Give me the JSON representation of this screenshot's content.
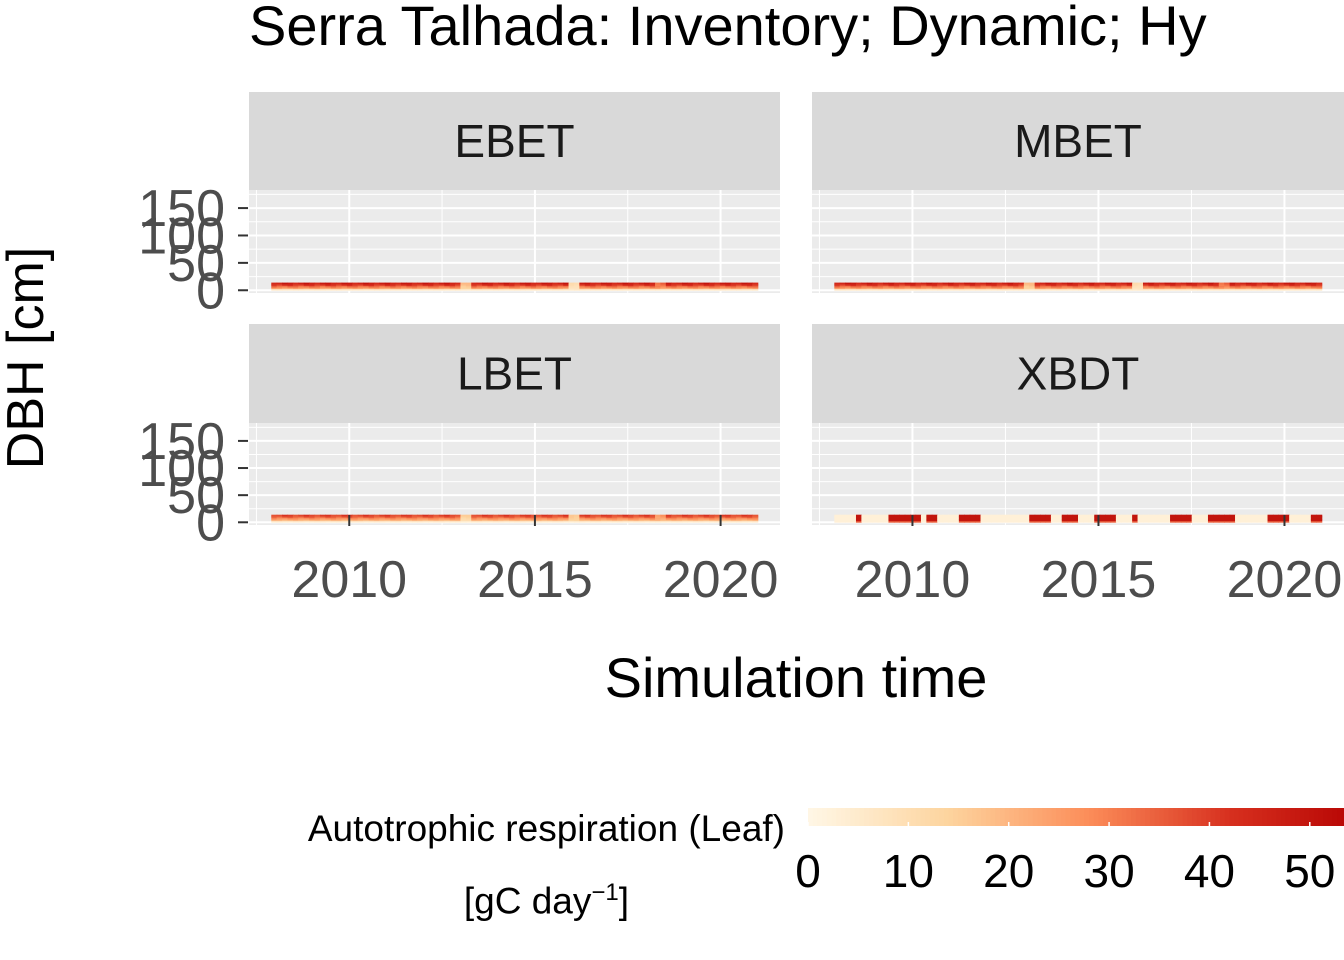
{
  "chart_data": {
    "type": "heatmap",
    "title": "Serra Talhada: Inventory; Dynamic; Hy",
    "xlabel": "Simulation time",
    "ylabel": "DBH [cm]",
    "xlim": [
      2007.3,
      2021.6
    ],
    "ylim": [
      -5,
      183
    ],
    "x_ticks": [
      2010,
      2015,
      2020
    ],
    "y_ticks": [
      0,
      50,
      100,
      150
    ],
    "facets": [
      "EBET",
      "MBET",
      "LBET",
      "XBDT"
    ],
    "grid": true,
    "legend": {
      "title_line1": "Autotrophic respiration (Leaf)",
      "title_line2_prefix": "[gC  day",
      "title_line2_sup": "−1",
      "title_line2_suffix": "]",
      "ticks": [
        0,
        10,
        20,
        30,
        40,
        50
      ],
      "limits": [
        0,
        56
      ],
      "placement": "bottom",
      "colors": [
        "#fff7e6",
        "#fdd49e",
        "#fc8d59",
        "#d7301f",
        "#b30000"
      ]
    },
    "series": [
      {
        "name": "EBET",
        "time_start": 2007.9,
        "time_end": 2021.0,
        "dbh_low": 0,
        "dbh_high": 14,
        "value_low_dbh": 6,
        "value_high_dbh": 50,
        "dips": [
          {
            "t": 2013.1,
            "value": 14
          },
          {
            "t": 2016.1,
            "value": 6
          },
          {
            "t": 2018.4,
            "value": 30
          }
        ]
      },
      {
        "name": "MBET",
        "time_start": 2007.9,
        "time_end": 2021.0,
        "dbh_low": 0,
        "dbh_high": 14,
        "value_low_dbh": 6,
        "value_high_dbh": 50,
        "dips": [
          {
            "t": 2013.1,
            "value": 14
          },
          {
            "t": 2016.1,
            "value": 6
          },
          {
            "t": 2018.4,
            "value": 30
          }
        ]
      },
      {
        "name": "LBET",
        "time_start": 2007.9,
        "time_end": 2021.0,
        "dbh_low": 0,
        "dbh_high": 14,
        "value_low_dbh": 4,
        "value_high_dbh": 42,
        "dips": [
          {
            "t": 2013.1,
            "value": 10
          },
          {
            "t": 2016.1,
            "value": 12
          },
          {
            "t": 2018.4,
            "value": 22
          }
        ]
      },
      {
        "name": "XBDT",
        "time_start": 2007.9,
        "time_end": 2021.0,
        "dbh_low": 0,
        "dbh_high": 14,
        "value_low_dbh": 3,
        "value_high_dbh": 3,
        "active_periods": [
          [
            2008.5,
            2008.7
          ],
          [
            2009.4,
            2010.2
          ],
          [
            2010.4,
            2010.7
          ],
          [
            2011.2,
            2011.9
          ],
          [
            2012.5,
            2012.6
          ],
          [
            2013.1,
            2013.7
          ],
          [
            2014.0,
            2014.4
          ],
          [
            2014.9,
            2015.5
          ],
          [
            2015.9,
            2016.0
          ],
          [
            2016.9,
            2017.5
          ],
          [
            2017.9,
            2018.7
          ],
          [
            2019.5,
            2020.1
          ],
          [
            2020.7,
            2021.0
          ]
        ],
        "active_value": 50
      }
    ]
  }
}
